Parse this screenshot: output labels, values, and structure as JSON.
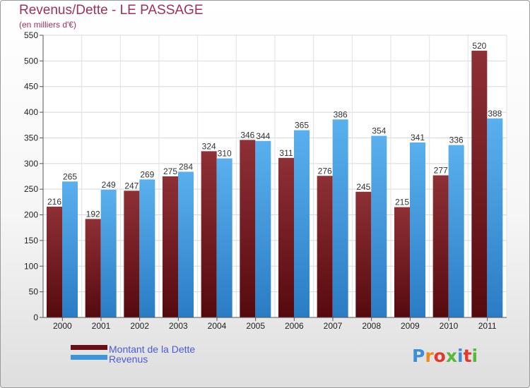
{
  "title": "Revenus/Dette - LE PASSAGE",
  "subtitle": "(en milliers d'€)",
  "legend": {
    "debt_label": "Montant de la Dette",
    "revenue_label": "Revenus"
  },
  "logo": {
    "text": "Proxiti",
    "letter_colors": [
      "#3a8fd8",
      "#f08a1c",
      "#e23a2a",
      "#58b838",
      "#3a8fd8",
      "#e23a2a",
      "#58b838"
    ]
  },
  "colors": {
    "debt": "#7a1e22",
    "revenue": "#4aa4e6",
    "title": "#a0305a",
    "legend_text": "#4a5bd8"
  },
  "chart_data": {
    "type": "bar",
    "categories": [
      "2000",
      "2001",
      "2002",
      "2003",
      "2004",
      "2005",
      "2006",
      "2007",
      "2008",
      "2009",
      "2010",
      "2011"
    ],
    "series": [
      {
        "name": "Montant de la Dette",
        "values": [
          216,
          192,
          247,
          275,
          324,
          346,
          311,
          276,
          245,
          215,
          277,
          520
        ]
      },
      {
        "name": "Revenus",
        "values": [
          265,
          249,
          269,
          284,
          310,
          344,
          365,
          386,
          354,
          341,
          336,
          388
        ]
      }
    ],
    "ylim": [
      0,
      550
    ],
    "yticks": [
      0,
      50,
      100,
      150,
      200,
      250,
      300,
      350,
      400,
      450,
      500,
      550
    ],
    "grid": true,
    "legend_position": "bottom-left"
  }
}
